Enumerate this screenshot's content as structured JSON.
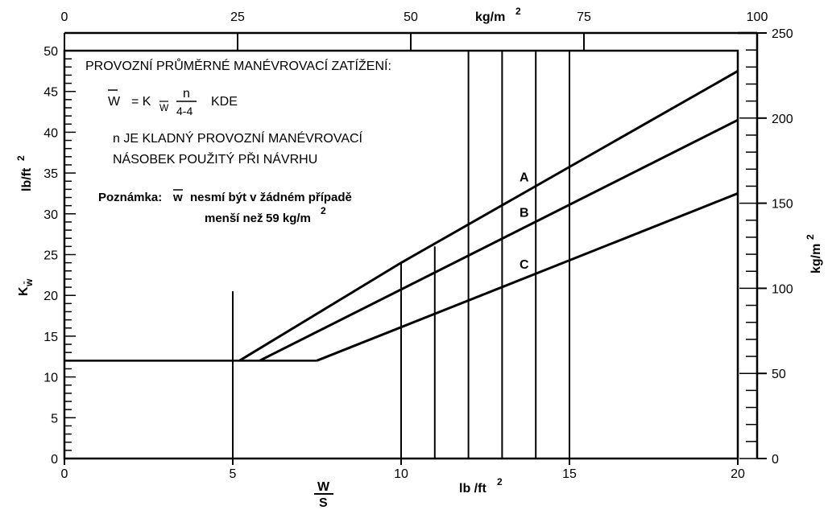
{
  "chart_data": {
    "type": "line",
    "series": [
      {
        "name": "A",
        "points": [
          [
            5.2,
            12
          ],
          [
            10,
            24
          ],
          [
            20,
            47.5
          ]
        ]
      },
      {
        "name": "B",
        "points": [
          [
            5.8,
            12
          ],
          [
            20,
            41.5
          ]
        ]
      },
      {
        "name": "C",
        "points": [
          [
            7.5,
            12
          ],
          [
            20,
            32.5
          ]
        ]
      }
    ],
    "base_line": {
      "points": [
        [
          0,
          12
        ],
        [
          7.5,
          12
        ]
      ]
    },
    "x_axis": {
      "range": [
        0,
        20
      ],
      "ticks": [
        "0",
        "5",
        "10",
        "15",
        "20"
      ],
      "unit_label": "lb /ft",
      "unit_sup": "2",
      "variable_num": "W",
      "variable_den": "S"
    },
    "y_axis_left": {
      "range": [
        0,
        50
      ],
      "ticks": [
        "0",
        "5",
        "10",
        "15",
        "20",
        "25",
        "30",
        "35",
        "40",
        "45",
        "50"
      ],
      "label_main": "K",
      "label_sub": "w̄",
      "unit_label": "lb/ft",
      "unit_sup": "2"
    },
    "y_axis_right": {
      "range": [
        0,
        250
      ],
      "ticks": [
        "0",
        "50",
        "100",
        "150",
        "200",
        "250"
      ],
      "unit_label": "kg/m",
      "unit_sup": "2"
    },
    "x_axis_top": {
      "range": [
        0,
        100
      ],
      "ticks": [
        "0",
        "25",
        "50",
        "75",
        "100"
      ],
      "unit_label": "kg/m",
      "unit_sup": "2"
    },
    "vertical_lines": [
      {
        "x": 5,
        "y_top": 20.5
      },
      {
        "x": 10,
        "y_top": 24
      },
      {
        "x": 11,
        "y_top": 26
      },
      {
        "x": 12,
        "y_top": 50
      },
      {
        "x": 13,
        "y_top": 50
      },
      {
        "x": 14,
        "y_top": 50
      },
      {
        "x": 15,
        "y_top": 50
      }
    ],
    "annotations": {
      "heading": "PROVOZNÍ PRŮMĚRNÉ MANÉVROVACÍ ZATÍŽENÍ:",
      "formula_w": "W",
      "formula_eq": "= K",
      "formula_sub": "W",
      "formula_num": "n",
      "formula_den": "4-4",
      "formula_kde": "KDE",
      "n_line1": "n JE KLADNÝ PROVOZNÍ MANÉVROVACÍ",
      "n_line2": "NÁSOBEK POUŽITÝ PŘI NÁVRHU",
      "poznamka_label": "Poznámka:",
      "poznamka_w": "w",
      "poznamka_text": "nesmí být v žádném případě",
      "poznamka_line2": "menší než",
      "poznamka_value": "59 kg/m",
      "poznamka_sup": "2"
    },
    "grid": false
  }
}
